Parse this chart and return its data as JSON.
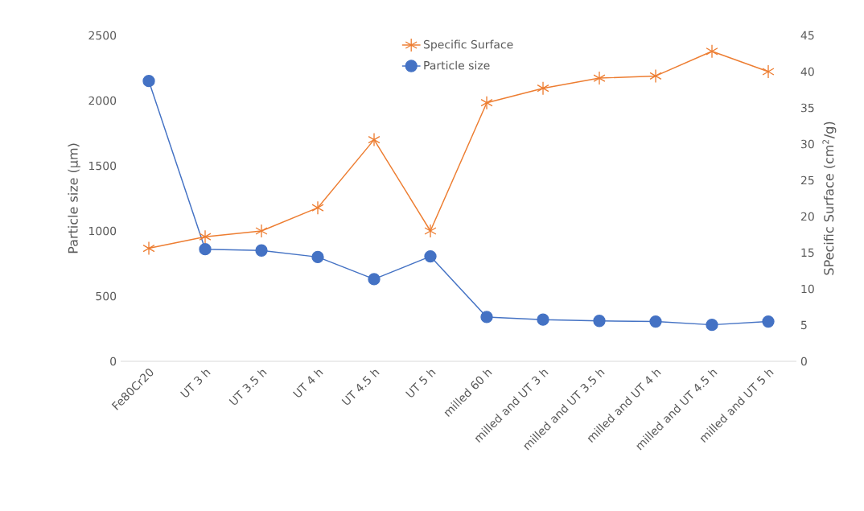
{
  "chart_data": {
    "type": "line",
    "categories": [
      "Fe80Cr20",
      "UT 3 h",
      "UT 3.5 h",
      "UT 4 h",
      "UT 4.5 h",
      "UT 5 h",
      "milled 60 h",
      "milled and UT 3 h",
      "milled and UT 3.5 h",
      "milled and UT 4 h",
      "milled and UT 4.5 h",
      "milled and UT 5 h"
    ],
    "series": [
      {
        "name": "Specific Surface",
        "color": "#ed7d31",
        "axis": "y2",
        "marker": "cross",
        "values": [
          15.6,
          17.2,
          18.0,
          21.2,
          30.6,
          18.0,
          35.7,
          37.7,
          39.1,
          39.4,
          42.8,
          40.0
        ]
      },
      {
        "name": "Particle size",
        "color": "#4472c4",
        "axis": "y",
        "marker": "circle",
        "values": [
          2150,
          860,
          850,
          800,
          630,
          805,
          340,
          320,
          310,
          305,
          280,
          305
        ]
      }
    ],
    "ylabel": "Particle size (µm)",
    "y2label": "SPecific Surface (cm$^{2}$/g)",
    "ylim": [
      0,
      2500
    ],
    "yticks": [
      0,
      500,
      1000,
      1500,
      2000,
      2500
    ],
    "y2lim": [
      0,
      45
    ],
    "y2ticks": [
      0,
      5,
      10,
      15,
      20,
      25,
      30,
      35,
      40,
      45
    ],
    "legend": "top",
    "grid": false
  }
}
